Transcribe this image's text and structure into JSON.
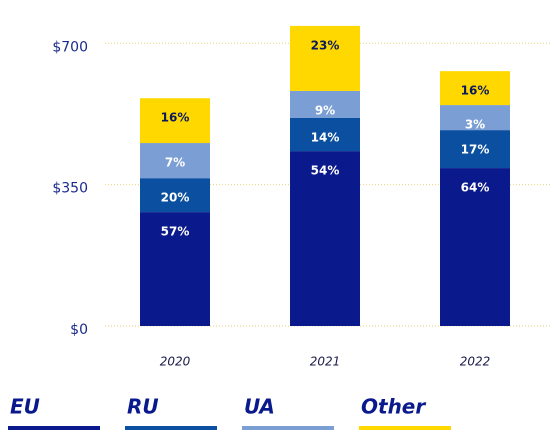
{
  "chart_data": {
    "type": "stacked_bar",
    "categories": [
      "2020",
      "2021",
      "2022"
    ],
    "series": [
      {
        "name": "EU",
        "color": "#0a1a8c",
        "label_color": "#ffffff",
        "values": [
          282,
          433,
          391
        ],
        "shares": [
          {
            "value": 57,
            "label": "57%"
          },
          {
            "value": 54,
            "label": "54%"
          },
          {
            "value": 64,
            "label": "64%"
          }
        ]
      },
      {
        "name": "RU",
        "color": "#0b4fa0",
        "label_color": "#ffffff",
        "values": [
          84,
          82,
          94
        ],
        "shares": [
          {
            "value": 20,
            "label": "20%"
          },
          {
            "value": 14,
            "label": "14%"
          },
          {
            "value": 17,
            "label": "17%"
          }
        ]
      },
      {
        "name": "UA",
        "color": "#7b9fd4",
        "label_color": "#ffffff",
        "values": [
          87,
          67,
          62
        ],
        "shares": [
          {
            "value": 7,
            "label": "7%"
          },
          {
            "value": 9,
            "label": "9%"
          },
          {
            "value": 3,
            "label": "3%"
          }
        ]
      },
      {
        "name": "Other",
        "color": "#ffd800",
        "label_color": "#0a1a5c",
        "values": [
          111,
          161,
          84
        ],
        "shares": [
          {
            "value": 16,
            "label": "16%"
          },
          {
            "value": 23,
            "label": "23%"
          },
          {
            "value": 16,
            "label": "16%"
          }
        ]
      }
    ],
    "ylim": [
      0,
      770
    ],
    "yticks": [
      {
        "value": 0,
        "label": "$0"
      },
      {
        "value": 350,
        "label": "$350"
      },
      {
        "value": 700,
        "label": "$700"
      }
    ],
    "grid": true
  }
}
